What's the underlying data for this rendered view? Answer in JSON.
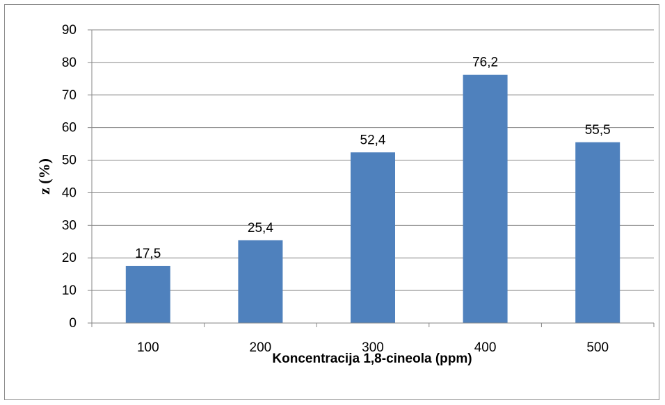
{
  "chart_data": {
    "type": "bar",
    "categories": [
      "100",
      "200",
      "300",
      "400",
      "500"
    ],
    "values": [
      17.5,
      25.4,
      52.4,
      76.2,
      55.5
    ],
    "data_labels": [
      "17,5",
      "25,4",
      "52,4",
      "76,2",
      "55,5"
    ],
    "xlabel": "Koncentracija 1,8-cineola (ppm)",
    "ylabel": "z (%)",
    "ylim": [
      0,
      90
    ],
    "yticks": [
      "0",
      "10",
      "20",
      "30",
      "40",
      "50",
      "60",
      "70",
      "80",
      "90"
    ],
    "grid": true,
    "legend": "none",
    "bar_color": "#4f81bd",
    "grid_color": "#868686"
  }
}
